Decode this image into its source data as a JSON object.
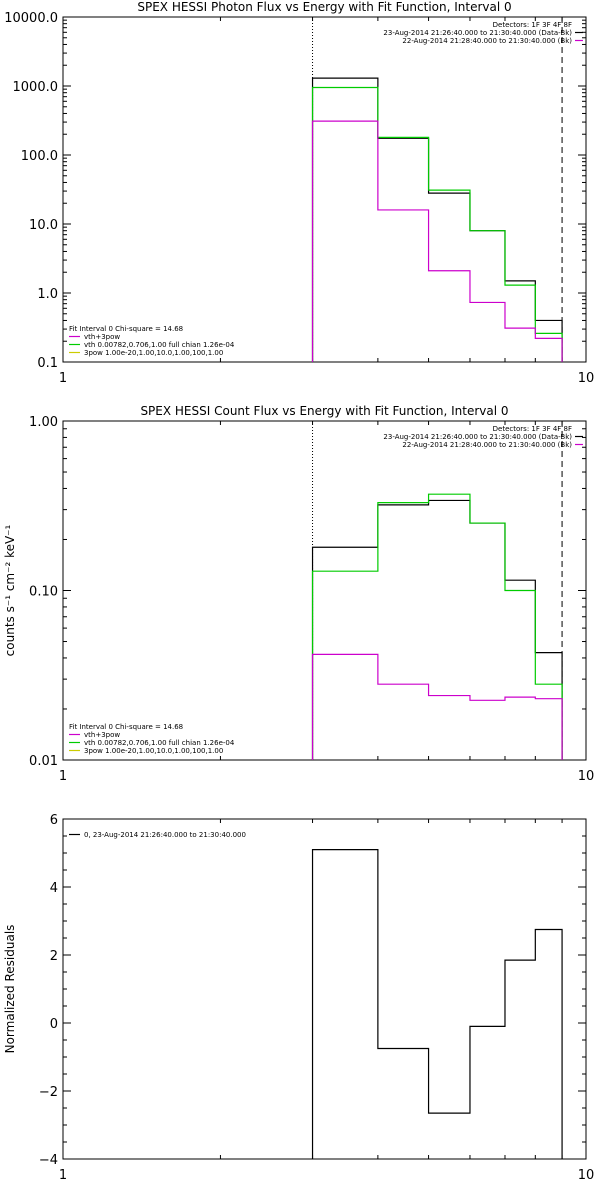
{
  "chart_data": [
    {
      "type": "line",
      "step": true,
      "title": "SPEX HESSI Photon Flux vs Energy with Fit Function, Interval 0",
      "xlabel": "",
      "ylabel": "",
      "xscale": "log",
      "yscale": "log",
      "xlim": [
        1,
        10
      ],
      "ylim": [
        0.1,
        10000
      ],
      "xticks": [
        {
          "v": 1,
          "label": "1"
        },
        {
          "v": 10,
          "label": "10"
        }
      ],
      "yticks": [
        {
          "v": 0.1,
          "label": "0.1"
        },
        {
          "v": 1,
          "label": "1.0"
        },
        {
          "v": 10,
          "label": "10.0"
        },
        {
          "v": 100,
          "label": "100.0"
        },
        {
          "v": 1000,
          "label": "1000.0"
        },
        {
          "v": 10000,
          "label": "10000.0"
        }
      ],
      "vlines": [
        {
          "x": 3,
          "style": "dotted"
        },
        {
          "x": 9,
          "style": "dashed"
        }
      ],
      "edges": [
        3,
        4,
        5,
        6,
        7,
        8,
        9
      ],
      "series": [
        {
          "name": "",
          "color": "#000000",
          "values": [
            1300,
            175,
            28,
            8,
            1.5,
            0.4
          ]
        },
        {
          "name": "",
          "color": "#00cc00",
          "values": [
            950,
            180,
            31,
            8,
            1.3,
            0.26
          ]
        },
        {
          "name": "",
          "color": "#cc00cc",
          "values": [
            310,
            16,
            2.1,
            0.73,
            0.31,
            0.22
          ]
        }
      ],
      "header_lines": [
        "Detectors: 1F 3F 4F 8F",
        "23-Aug-2014 21:26:40.000 to 21:30:40.000 (Data-Bk)",
        "22-Aug-2014 21:28:40.000 to 21:30:40.000 (Bk)"
      ],
      "header_colors": [
        "",
        "#000000",
        "#cc00cc"
      ],
      "legend": {
        "position": "bottom-left",
        "title": "Fit Interval 0   Chi-square = 14.68",
        "items": [
          {
            "label": "vth+3pow",
            "color": "#cc00cc"
          },
          {
            "label": "vth 0.00782,0.706,1.00   full chian 1.26e-04",
            "color": "#00cc00"
          },
          {
            "label": "3pow 1.00e-20,1.00,10.0,1.00,100,1.00",
            "color": "#cccc00"
          }
        ]
      }
    },
    {
      "type": "line",
      "step": true,
      "title": "SPEX HESSI Count Flux vs Energy with Fit Function, Interval 0",
      "xlabel": "",
      "ylabel": "counts s⁻¹ cm⁻² keV⁻¹",
      "xscale": "log",
      "yscale": "log",
      "xlim": [
        1,
        10
      ],
      "ylim": [
        0.01,
        1
      ],
      "xticks": [
        {
          "v": 1,
          "label": "1"
        },
        {
          "v": 10,
          "label": "10"
        }
      ],
      "yticks": [
        {
          "v": 0.01,
          "label": "0.01"
        },
        {
          "v": 0.1,
          "label": "0.10"
        },
        {
          "v": 1,
          "label": "1.00"
        }
      ],
      "vlines": [
        {
          "x": 3,
          "style": "dotted"
        },
        {
          "x": 9,
          "style": "dashed"
        }
      ],
      "edges": [
        3,
        4,
        5,
        6,
        7,
        8,
        9
      ],
      "series": [
        {
          "name": "",
          "color": "#000000",
          "values": [
            0.18,
            0.32,
            0.34,
            0.25,
            0.115,
            0.043
          ]
        },
        {
          "name": "",
          "color": "#00cc00",
          "values": [
            0.13,
            0.33,
            0.37,
            0.25,
            0.1,
            0.028
          ]
        },
        {
          "name": "",
          "color": "#cc00cc",
          "values": [
            0.042,
            0.028,
            0.024,
            0.0225,
            0.0235,
            0.023
          ]
        }
      ],
      "header_lines": [
        "Detectors: 1F 3F 4F 8F",
        "23-Aug-2014 21:26:40.000 to 21:30:40.000 (Data-Bk)",
        "22-Aug-2014 21:28:40.000 to 21:30:40.000 (Bk)"
      ],
      "header_colors": [
        "",
        "#000000",
        "#cc00cc"
      ],
      "legend": {
        "position": "bottom-left",
        "title": "Fit Interval 0   Chi-square = 14.68",
        "items": [
          {
            "label": "vth+3pow",
            "color": "#cc00cc"
          },
          {
            "label": "vth 0.00782,0.706,1.00   full chian 1.26e-04",
            "color": "#00cc00"
          },
          {
            "label": "3pow 1.00e-20,1.00,10.0,1.00,100,1.00",
            "color": "#cccc00"
          }
        ]
      }
    },
    {
      "type": "line",
      "step": true,
      "title": "",
      "xlabel": "",
      "ylabel": "Normalized Residuals",
      "xscale": "log",
      "yscale": "linear",
      "xlim": [
        1,
        10
      ],
      "ylim": [
        -4,
        6
      ],
      "xticks": [
        {
          "v": 1,
          "label": "1"
        },
        {
          "v": 10,
          "label": "10"
        }
      ],
      "yticks": [
        {
          "v": -4,
          "label": "−4"
        },
        {
          "v": -2,
          "label": "−2"
        },
        {
          "v": 0,
          "label": "0"
        },
        {
          "v": 2,
          "label": "2"
        },
        {
          "v": 4,
          "label": "4"
        },
        {
          "v": 6,
          "label": "6"
        }
      ],
      "vlines": [],
      "edges": [
        3,
        4,
        5,
        6,
        7,
        8,
        9
      ],
      "series": [
        {
          "name": "",
          "color": "#000000",
          "values": [
            5.1,
            -0.75,
            -2.65,
            -0.1,
            1.85,
            2.75
          ]
        }
      ],
      "header_lines": [],
      "header_colors": [],
      "legend": {
        "position": "top-left",
        "title": "",
        "items": [
          {
            "label": "0, 23-Aug-2014 21:26:40.000 to 21:30:40.000",
            "color": "#000000"
          }
        ]
      }
    }
  ]
}
